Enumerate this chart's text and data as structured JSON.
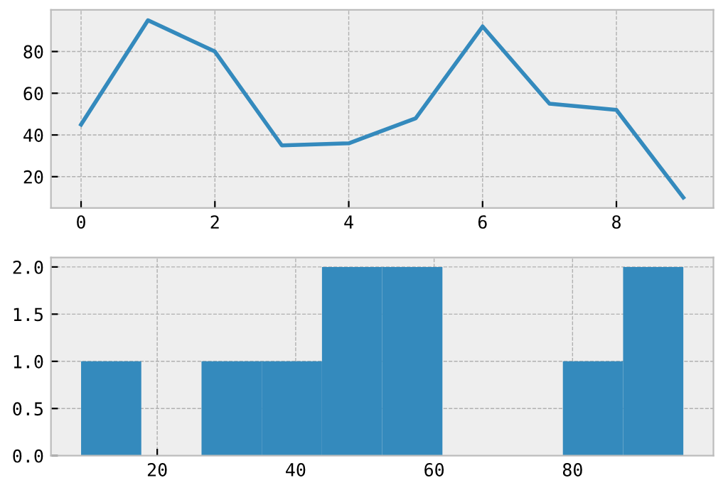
{
  "chart_data": [
    {
      "type": "line",
      "x": [
        0,
        1,
        2,
        3,
        4,
        5,
        6,
        7,
        8,
        9
      ],
      "series": [
        {
          "color": "#348abd",
          "values": [
            45,
            95,
            80,
            35,
            36,
            48,
            92,
            55,
            52,
            10
          ]
        }
      ],
      "xlim": [
        -0.45,
        9.45
      ],
      "xticks": [
        0,
        2,
        4,
        6,
        8
      ],
      "ylim": [
        5,
        100
      ],
      "yticks": [
        20,
        40,
        60,
        80
      ],
      "grid": true,
      "marker": "none",
      "line_style": "solid"
    },
    {
      "type": "histogram",
      "bins": [
        9,
        17.7,
        26.4,
        35.1,
        43.8,
        52.5,
        61.2,
        69.9,
        78.6,
        87.3,
        96
      ],
      "values": [
        1,
        0,
        1,
        1,
        2,
        2,
        0,
        0,
        1,
        2
      ],
      "color": "#348abd",
      "xlim": [
        4.65,
        100.35
      ],
      "xticks": [
        20,
        40,
        60,
        80
      ],
      "ylim": [
        0,
        2.1
      ],
      "yticks": [
        {
          "value": 0,
          "label": "0.0"
        },
        {
          "value": 0.5,
          "label": "0.5"
        },
        {
          "value": 1,
          "label": "1.0"
        },
        {
          "value": 1.5,
          "label": "1.5"
        },
        {
          "value": 2,
          "label": "2.0"
        }
      ],
      "grid": true
    }
  ]
}
